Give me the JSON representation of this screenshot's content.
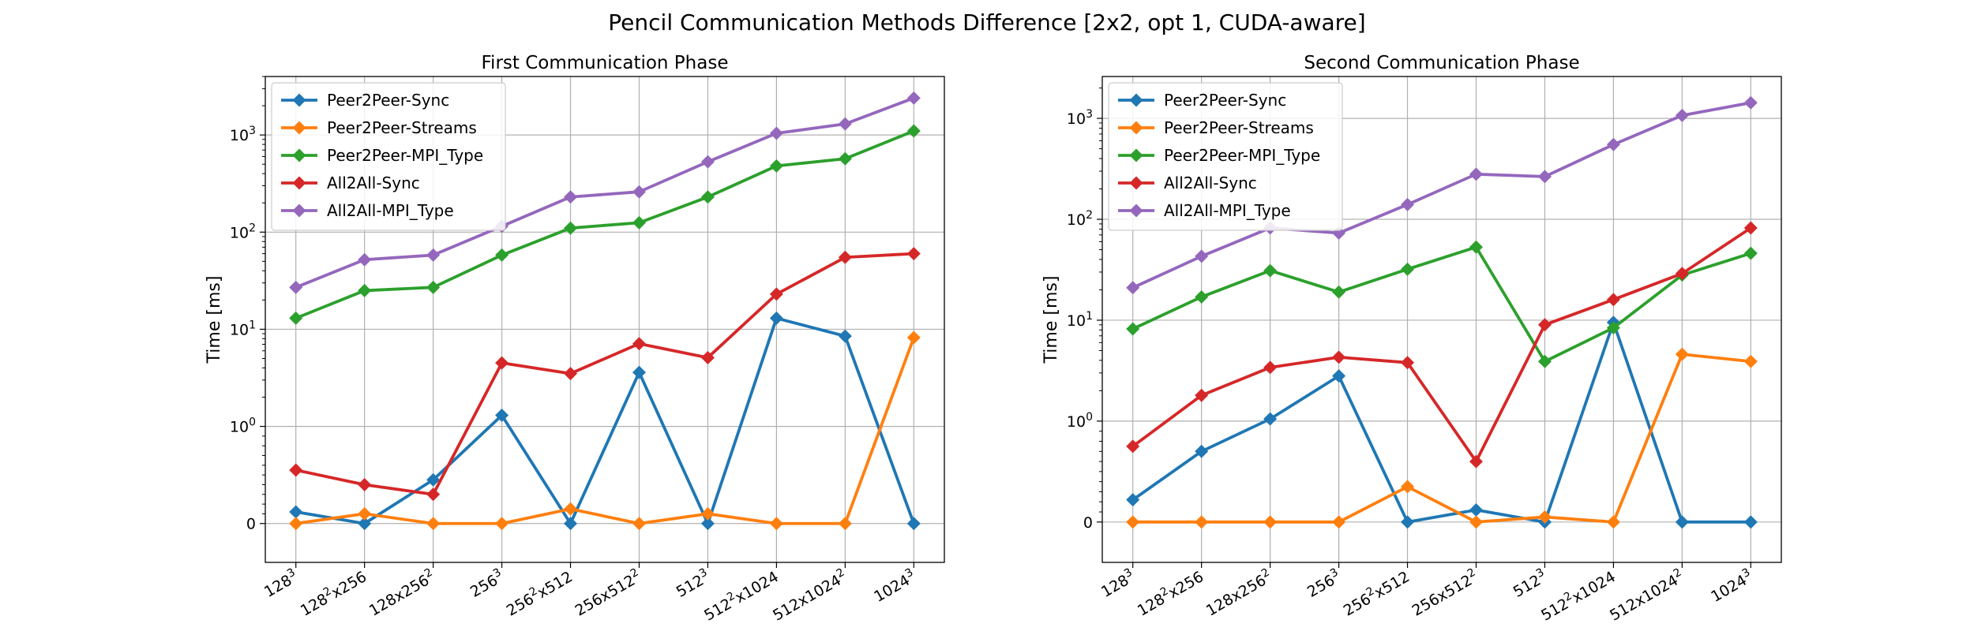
{
  "suptitle": "Pencil Communication Methods Difference [2x2, opt 1, CUDA-aware]",
  "styles": {
    "series_colors": [
      "#1f77b4",
      "#ff7f0e",
      "#2ca02c",
      "#d62728",
      "#9467bd"
    ],
    "grid_color": "#b0b0b0"
  },
  "chart_data": [
    {
      "type": "line",
      "title": "First Communication Phase",
      "xlabel": "",
      "ylabel": "Time [ms]",
      "yscale": "symlog",
      "ylim": [
        -0.4,
        4000
      ],
      "yticks": [
        "0",
        "10^0",
        "10^1",
        "10^2",
        "10^3"
      ],
      "grid": true,
      "legend_position": "upper-left",
      "categories": [
        "128^3",
        "128^2x256",
        "128x256^2",
        "256^3",
        "256^2x512",
        "256x512^2",
        "512^3",
        "512^2x1024",
        "512x1024^2",
        "1024^3"
      ],
      "series": [
        {
          "name": "Peer2Peer-Sync",
          "values": [
            0.12,
            0.0,
            0.45,
            1.3,
            0.0,
            3.6,
            0.0,
            13,
            8.5,
            0.0
          ]
        },
        {
          "name": "Peer2Peer-Streams",
          "values": [
            0.0,
            0.1,
            0.0,
            0.0,
            0.15,
            0.0,
            0.1,
            0.0,
            0.0,
            8.2
          ]
        },
        {
          "name": "Peer2Peer-MPI_Type",
          "values": [
            13,
            25,
            27,
            58,
            110,
            125,
            230,
            480,
            570,
            1100
          ]
        },
        {
          "name": "All2All-Sync",
          "values": [
            0.55,
            0.4,
            0.3,
            4.5,
            3.5,
            7.1,
            5.1,
            23,
            55,
            60
          ]
        },
        {
          "name": "All2All-MPI_Type",
          "values": [
            27,
            52,
            58,
            115,
            230,
            260,
            530,
            1040,
            1300,
            2400
          ]
        }
      ]
    },
    {
      "type": "line",
      "title": "Second Communication Phase",
      "xlabel": "",
      "ylabel": "Time [ms]",
      "yscale": "symlog",
      "ylim": [
        -0.4,
        2600
      ],
      "yticks": [
        "0",
        "10^0",
        "10^1",
        "10^2",
        "10^3"
      ],
      "grid": true,
      "legend_position": "upper-left",
      "categories": [
        "128^3",
        "128^2x256",
        "128x256^2",
        "256^3",
        "256^2x512",
        "256x512^2",
        "512^3",
        "512^2x1024",
        "512x1024^2",
        "1024^3"
      ],
      "series": [
        {
          "name": "Peer2Peer-Sync",
          "values": [
            0.22,
            0.7,
            1.05,
            2.8,
            0.0,
            0.12,
            0.0,
            9.5,
            0.0,
            0.0
          ]
        },
        {
          "name": "Peer2Peer-Streams",
          "values": [
            0.0,
            0.0,
            0.0,
            0.0,
            0.35,
            0.0,
            0.05,
            0.0,
            4.6,
            3.9
          ]
        },
        {
          "name": "Peer2Peer-MPI_Type",
          "values": [
            8.2,
            17,
            31,
            19,
            32,
            53,
            3.9,
            8.4,
            28,
            46
          ]
        },
        {
          "name": "All2All-Sync",
          "values": [
            0.75,
            1.8,
            3.4,
            4.3,
            3.8,
            0.6,
            9.0,
            16,
            29,
            82
          ]
        },
        {
          "name": "All2All-MPI_Type",
          "values": [
            21,
            43,
            82,
            73,
            140,
            280,
            265,
            550,
            1070,
            1430
          ]
        }
      ]
    }
  ]
}
